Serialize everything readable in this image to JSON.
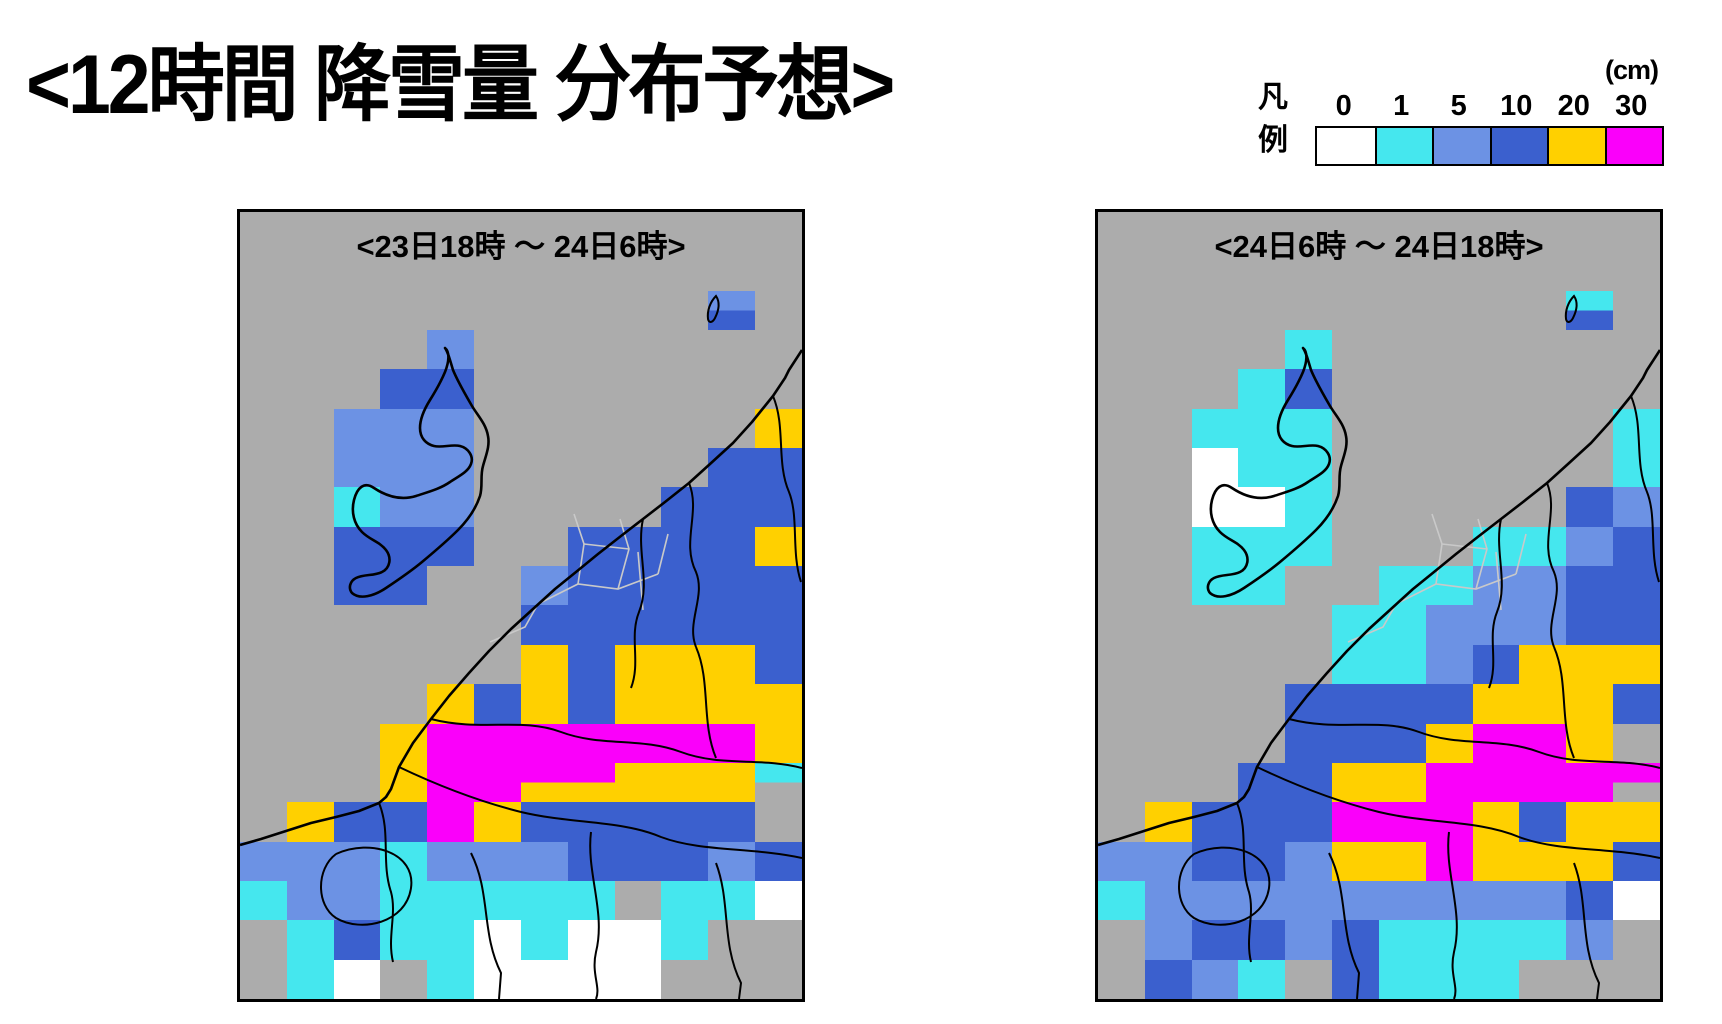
{
  "page_title": "<12時間 降雪量 分布予想>",
  "legend": {
    "label": "凡\n例",
    "unit": "(cm)",
    "stops": [
      {
        "value": "0",
        "color": "#FFFFFF"
      },
      {
        "value": "1",
        "color": "#45E7EE"
      },
      {
        "value": "5",
        "color": "#6C92E4"
      },
      {
        "value": "10",
        "color": "#3B60CE"
      },
      {
        "value": "20",
        "color": "#FFD000"
      },
      {
        "value": "30",
        "color": "#FA00FA"
      }
    ]
  },
  "palette": {
    "G": "#ACACAC",
    "W": "#FFFFFF",
    "C": "#45E7EE",
    "L": "#6C92E4",
    "B": "#3B60CE",
    "Y": "#FFD000",
    "M": "#FA00FA"
  },
  "palette_meaning": {
    "G": "no-data / sea (gray)",
    "W": "0 cm",
    "C": "1 cm",
    "L": "5 cm",
    "B": "10 cm",
    "Y": "20 cm",
    "M": "30 cm"
  },
  "maps": [
    {
      "title": "<23日18時 ～ 24日6時>",
      "grid": [
        [
          "G",
          "G",
          "G",
          "G",
          "G",
          "G",
          "G",
          "G",
          "G",
          "G",
          "G",
          "G"
        ],
        [
          "G",
          "G",
          "G",
          "G",
          "G",
          "G",
          "G",
          "G",
          "G",
          "G",
          "G",
          "G"
        ],
        [
          "G",
          "G",
          "G",
          "G",
          "G",
          "G",
          "G",
          "G",
          "G",
          "G",
          "L/B",
          "G"
        ],
        [
          "G",
          "G",
          "G",
          "G",
          "L",
          "G",
          "G",
          "G",
          "G",
          "G",
          "G",
          "G"
        ],
        [
          "G",
          "G",
          "G",
          "B",
          "B",
          "G",
          "G",
          "G",
          "G",
          "G",
          "G",
          "G"
        ],
        [
          "G",
          "G",
          "L",
          "L",
          "L",
          "G",
          "G",
          "G",
          "G",
          "G",
          "G",
          "Y"
        ],
        [
          "G",
          "G",
          "L",
          "L",
          "L",
          "G",
          "G",
          "G",
          "G",
          "G",
          "B",
          "B"
        ],
        [
          "G",
          "G",
          "C",
          "L",
          "L",
          "G",
          "G",
          "G",
          "G",
          "B",
          "B",
          "B"
        ],
        [
          "G",
          "G",
          "B",
          "B",
          "B",
          "G",
          "G",
          "B",
          "B",
          "B",
          "B",
          "Y"
        ],
        [
          "G",
          "G",
          "B",
          "B",
          "G",
          "G",
          "L",
          "B",
          "B",
          "B",
          "B",
          "B"
        ],
        [
          "G",
          "G",
          "G",
          "G",
          "G",
          "G",
          "B",
          "B",
          "B",
          "B",
          "B",
          "B"
        ],
        [
          "G",
          "G",
          "G",
          "G",
          "G",
          "G",
          "Y",
          "B",
          "Y",
          "Y",
          "Y",
          "B"
        ],
        [
          "G",
          "G",
          "G",
          "G",
          "Y",
          "B",
          "Y",
          "B",
          "Y",
          "Y",
          "Y",
          "Y"
        ],
        [
          "G",
          "G",
          "G",
          "Y",
          "M",
          "M",
          "M",
          "M",
          "M",
          "M",
          "M",
          "Y"
        ],
        [
          "G",
          "G",
          "G",
          "Y",
          "M",
          "M",
          "M/Y",
          "M/Y",
          "Y",
          "Y",
          "Y",
          "C/G"
        ],
        [
          "G",
          "Y",
          "B",
          "B",
          "M",
          "Y",
          "B",
          "B",
          "B",
          "B",
          "B",
          "G"
        ],
        [
          "L",
          "L",
          "L",
          "C",
          "L",
          "L",
          "L",
          "B",
          "B",
          "B",
          "L",
          "B"
        ],
        [
          "C",
          "L",
          "L",
          "C",
          "C",
          "C",
          "C",
          "C",
          "G",
          "C",
          "C",
          "W"
        ],
        [
          "G",
          "C",
          "B",
          "C",
          "C",
          "W",
          "C",
          "W",
          "W",
          "C",
          "G",
          "G"
        ],
        [
          "G",
          "C",
          "W",
          "G",
          "C",
          "W",
          "W",
          "W",
          "W",
          "G",
          "G",
          "G"
        ]
      ]
    },
    {
      "title": "<24日6時 ～ 24日18時>",
      "grid": [
        [
          "G",
          "G",
          "G",
          "G",
          "G",
          "G",
          "G",
          "G",
          "G",
          "G",
          "G",
          "G"
        ],
        [
          "G",
          "G",
          "G",
          "G",
          "G",
          "G",
          "G",
          "G",
          "G",
          "G",
          "G",
          "G"
        ],
        [
          "G",
          "G",
          "G",
          "G",
          "G",
          "G",
          "G",
          "G",
          "G",
          "G",
          "C/B",
          "G"
        ],
        [
          "G",
          "G",
          "G",
          "G",
          "C",
          "G",
          "G",
          "G",
          "G",
          "G",
          "G",
          "G"
        ],
        [
          "G",
          "G",
          "G",
          "C",
          "B",
          "G",
          "G",
          "G",
          "G",
          "G",
          "G",
          "G"
        ],
        [
          "G",
          "G",
          "C",
          "C",
          "C",
          "G",
          "G",
          "G",
          "G",
          "G",
          "G",
          "C"
        ],
        [
          "G",
          "G",
          "W",
          "C",
          "C",
          "G",
          "G",
          "G",
          "G",
          "G",
          "G",
          "C"
        ],
        [
          "G",
          "G",
          "W",
          "W",
          "C",
          "G",
          "G",
          "G",
          "G",
          "G",
          "B",
          "L"
        ],
        [
          "G",
          "G",
          "C",
          "C",
          "C",
          "G",
          "G",
          "G",
          "C",
          "C",
          "L",
          "B"
        ],
        [
          "G",
          "G",
          "C",
          "C",
          "G",
          "G",
          "C",
          "C",
          "L",
          "L",
          "B",
          "B"
        ],
        [
          "G",
          "G",
          "G",
          "G",
          "G",
          "C",
          "C",
          "L",
          "L",
          "L",
          "B",
          "B"
        ],
        [
          "G",
          "G",
          "G",
          "G",
          "G",
          "C",
          "C",
          "L",
          "B",
          "Y",
          "Y",
          "Y"
        ],
        [
          "G",
          "G",
          "G",
          "G",
          "B",
          "B",
          "B",
          "B",
          "Y",
          "Y",
          "Y",
          "B"
        ],
        [
          "G",
          "G",
          "G",
          "G",
          "B",
          "B",
          "B",
          "Y",
          "M",
          "M",
          "Y",
          "G"
        ],
        [
          "G",
          "G",
          "G",
          "B",
          "B",
          "Y",
          "Y",
          "M",
          "M",
          "M",
          "M",
          "M/G"
        ],
        [
          "G",
          "Y",
          "B",
          "B",
          "B",
          "M",
          "M",
          "M",
          "Y",
          "B",
          "Y",
          "Y"
        ],
        [
          "L",
          "L",
          "B",
          "B",
          "L",
          "Y",
          "Y",
          "M",
          "Y",
          "Y",
          "Y",
          "B"
        ],
        [
          "C",
          "L",
          "L",
          "L",
          "L",
          "L",
          "L",
          "L",
          "L",
          "L",
          "B",
          "W"
        ],
        [
          "G",
          "L",
          "B",
          "B",
          "L",
          "B",
          "C",
          "C",
          "C",
          "C",
          "L",
          "G"
        ],
        [
          "G",
          "B",
          "L",
          "C",
          "G",
          "B",
          "C",
          "C",
          "C",
          "G",
          "G",
          "G"
        ]
      ]
    }
  ]
}
